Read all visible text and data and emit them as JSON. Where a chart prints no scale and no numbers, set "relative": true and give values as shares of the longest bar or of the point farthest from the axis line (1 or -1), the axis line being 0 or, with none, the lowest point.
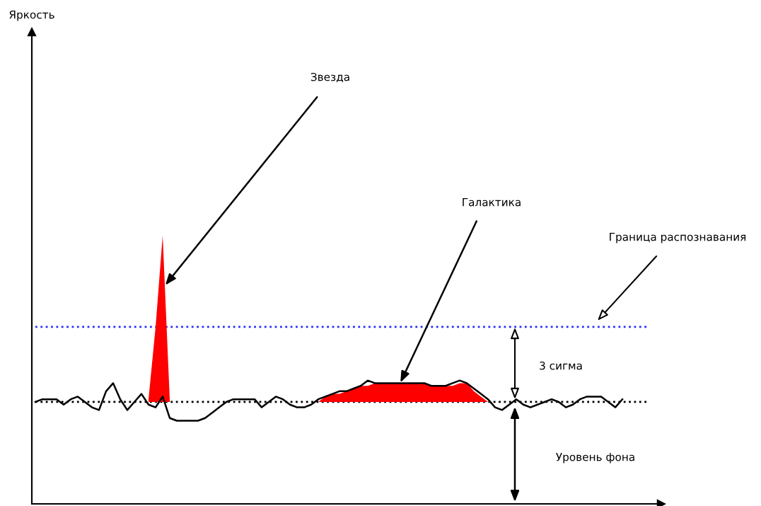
{
  "chart_data": {
    "type": "line",
    "relative": true,
    "marker": "none",
    "line_style": "solid",
    "categories": [
      null,
      null,
      null,
      null,
      null,
      null,
      null,
      null,
      null,
      null,
      null,
      null,
      null,
      null,
      null,
      null,
      null,
      null,
      null,
      null,
      null,
      null,
      null,
      null,
      null,
      null,
      null,
      null,
      null,
      null,
      null,
      null,
      null,
      null,
      null,
      null,
      null,
      null,
      null,
      null,
      null,
      null,
      null,
      null,
      null,
      null,
      null,
      null,
      null,
      null,
      null,
      null,
      null,
      null,
      null,
      null,
      null,
      null,
      null,
      null,
      null,
      null,
      null,
      null,
      null,
      null,
      null,
      null,
      null,
      null,
      null,
      null,
      null,
      null,
      null,
      null,
      null,
      null,
      null,
      null,
      null,
      null,
      null,
      null
    ],
    "series": [
      {
        "type": "area",
        "color": "#ff0000",
        "values": [
          null,
          null,
          null,
          null,
          null,
          null,
          null,
          null,
          null,
          null,
          null,
          null,
          null,
          null,
          null,
          null,
          0.39,
          0.66,
          1.0,
          0.39,
          null,
          null,
          null,
          null,
          null,
          null,
          null,
          null,
          null,
          null,
          null,
          null,
          null,
          null,
          null,
          null,
          null,
          null,
          null,
          null,
          null,
          null,
          null,
          null,
          null,
          null,
          null,
          null,
          null,
          null,
          null,
          null,
          null,
          null,
          null,
          null,
          null,
          null,
          null,
          null,
          null,
          null,
          null,
          null,
          null,
          null,
          null,
          null,
          null,
          null,
          null,
          null,
          null,
          null,
          null,
          null,
          null,
          null,
          null,
          null,
          null,
          null,
          null,
          null
        ]
      },
      {
        "type": "area",
        "color": "#ff0000",
        "values": [
          null,
          null,
          null,
          null,
          null,
          null,
          null,
          null,
          null,
          null,
          null,
          null,
          null,
          null,
          null,
          null,
          null,
          null,
          null,
          null,
          null,
          null,
          null,
          null,
          null,
          null,
          null,
          null,
          null,
          null,
          null,
          null,
          null,
          null,
          null,
          null,
          null,
          null,
          null,
          null,
          0.38,
          0.4,
          0.41,
          0.41,
          0.42,
          0.43,
          0.44,
          0.44,
          0.45,
          0.45,
          0.45,
          0.45,
          0.45,
          0.45,
          0.45,
          0.45,
          0.44,
          0.44,
          0.44,
          0.44,
          0.45,
          0.45,
          0.42,
          0.4,
          0.38,
          null,
          null,
          null,
          null,
          null,
          null,
          null,
          null,
          null,
          null,
          null,
          null,
          null,
          null,
          null,
          null,
          null,
          null,
          null
        ]
      },
      {
        "color": "#000000",
        "values": [
          0.38,
          0.39,
          0.39,
          0.39,
          0.37,
          0.39,
          0.4,
          0.38,
          0.36,
          0.35,
          0.42,
          0.45,
          0.39,
          0.35,
          0.38,
          0.41,
          0.37,
          0.36,
          0.4,
          0.32,
          0.31,
          0.31,
          0.31,
          0.31,
          0.32,
          0.34,
          0.36,
          0.38,
          0.39,
          0.39,
          0.39,
          0.39,
          0.36,
          0.38,
          0.4,
          0.39,
          0.37,
          0.36,
          0.36,
          0.37,
          0.39,
          0.4,
          0.41,
          0.42,
          0.42,
          0.43,
          0.44,
          0.46,
          0.45,
          0.45,
          0.45,
          0.45,
          0.45,
          0.45,
          0.45,
          0.45,
          0.44,
          0.44,
          0.44,
          0.45,
          0.46,
          0.45,
          0.43,
          0.41,
          0.39,
          0.36,
          0.35,
          0.37,
          0.39,
          0.37,
          0.36,
          0.37,
          0.38,
          0.39,
          0.38,
          0.36,
          0.37,
          0.39,
          0.4,
          0.4,
          0.4,
          0.38,
          0.36,
          0.39
        ]
      }
    ],
    "ref_lines": [
      {
        "axis": "y",
        "value": 0.38,
        "color": "#000000",
        "line_style": "dotted"
      },
      {
        "axis": "y",
        "value": 0.66,
        "color": "#2a2aff",
        "line_style": "dotted"
      }
    ],
    "annotations": [
      "Звезда",
      "Галактика",
      "Граница распознавания",
      "3 сигма",
      "Уровень фона",
      "Яркость"
    ]
  }
}
